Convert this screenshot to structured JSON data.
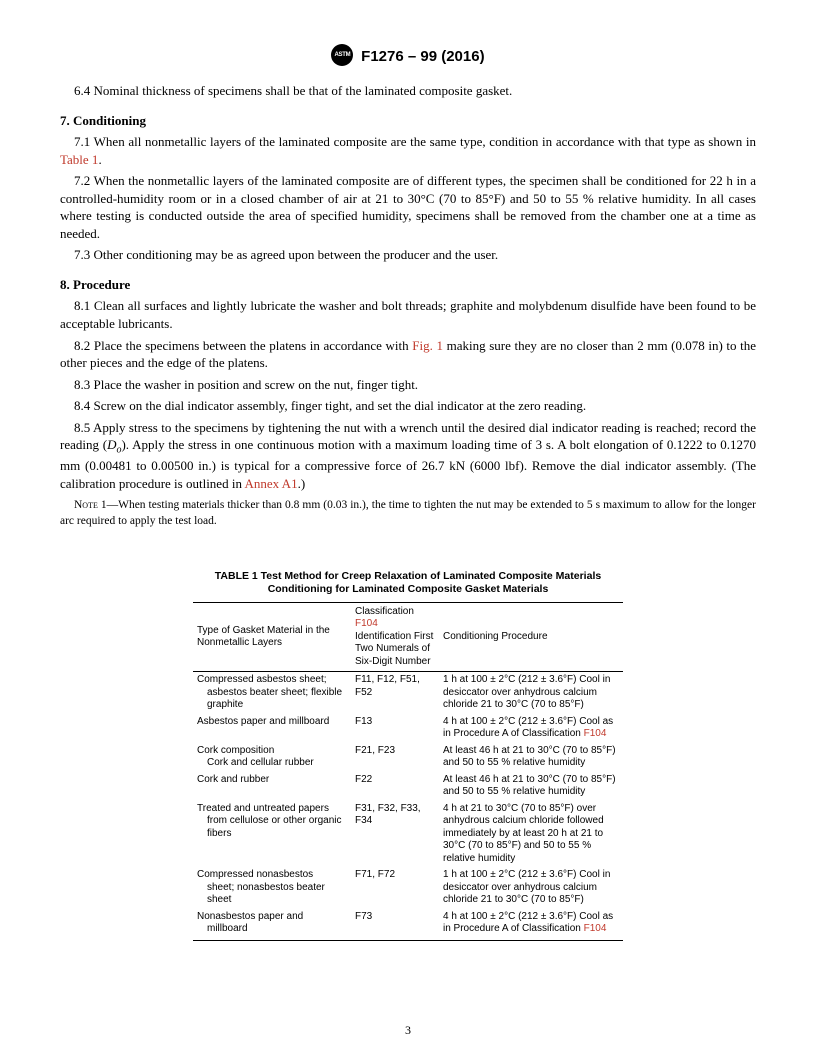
{
  "header": {
    "designation": "F1276 – 99 (2016)"
  },
  "paragraphs": {
    "p64": "6.4 Nominal thickness of specimens shall be that of the laminated composite gasket.",
    "s7": "7. Conditioning",
    "p71a": "7.1 When all nonmetallic layers of the laminated composite are the same type, condition in accordance with that type as shown in ",
    "p71link": "Table 1",
    "p71b": ".",
    "p72": "7.2 When the nonmetallic layers of the laminated composite are of different types, the specimen shall be conditioned for 22 h in a controlled-humidity room or in a closed chamber of air at 21 to 30°C (70 to 85°F) and 50 to 55 % relative humidity. In all cases where testing is conducted outside the area of specified humidity, specimens shall be removed from the chamber one at a time as needed.",
    "p73": "7.3 Other conditioning may be as agreed upon between the producer and the user.",
    "s8": "8. Procedure",
    "p81": "8.1 Clean all surfaces and lightly lubricate the washer and bolt threads; graphite and molybdenum disulfide have been found to be acceptable lubricants.",
    "p82a": "8.2 Place the specimens between the platens in accordance with ",
    "p82link": "Fig. 1",
    "p82b": " making sure they are no closer than 2 mm (0.078 in) to the other pieces and the edge of the platens.",
    "p83": "8.3 Place the washer in position and screw on the nut, finger tight.",
    "p84": "8.4 Screw on the dial indicator assembly, finger tight, and set the dial indicator at the zero reading.",
    "p85a": "8.5 Apply stress to the specimens by tightening the nut with a wrench until the desired dial indicator reading is reached; record the reading (",
    "p85var": "D",
    "p85sub": "o",
    "p85b": "). Apply the stress in one continuous motion with a maximum loading time of 3 s. A bolt elongation of 0.1222 to 0.1270 mm (0.00481 to 0.00500 in.) is typical for a compressive force of 26.7 kN (6000 lbf). Remove the dial indicator assembly. (The calibration procedure is outlined in ",
    "p85link": "Annex A1",
    "p85c": ".)",
    "note1label": "Note",
    "note1": " 1—When testing materials thicker than 0.8 mm (0.03 in.), the time to tighten the nut may be extended to 5 s maximum to allow for the longer arc required to apply the test load."
  },
  "table": {
    "title": "TABLE 1 Test Method for Creep Relaxation of Laminated Composite Materials Conditioning for Laminated Composite Gasket Materials",
    "head": {
      "c1": "Type of Gasket Material in the Nonmetallic Layers",
      "c2a": "Classification",
      "c2link": "F104",
      "c2b": "Identification First Two Numerals of Six-Digit Number",
      "c3": "Conditioning Procedure"
    },
    "rows": [
      {
        "c1": "Compressed asbestos sheet;",
        "c1b": "asbestos beater sheet; flexible graphite",
        "c2": "F11, F12, F51, F52",
        "c3": "1 h at 100 ± 2°C (212 ± 3.6°F) Cool in desiccator over anhydrous calcium chloride 21 to 30°C (70 to 85°F)"
      },
      {
        "c1": "Asbestos paper and millboard",
        "c1b": "",
        "c2": "F13",
        "c3a": "4 h at 100 ± 2°C (212 ± 3.6°F) Cool as in Procedure A of Classification ",
        "c3link": "F104"
      },
      {
        "c1": "Cork composition",
        "c1b": "Cork and cellular rubber",
        "c2": "F21, F23",
        "c3": "At least 46 h at 21 to 30°C (70 to 85°F) and 50 to 55 % relative humidity"
      },
      {
        "c1": "Cork and rubber",
        "c1b": "",
        "c2": "F22",
        "c3": "At least 46 h at 21 to 30°C (70 to 85°F) and 50 to 55 % relative humidity"
      },
      {
        "c1": "Treated and untreated papers",
        "c1b": "from cellulose or other organic fibers",
        "c2": "F31, F32, F33, F34",
        "c3": "4 h at 21 to 30°C (70 to 85°F) over anhydrous calcium chloride followed immediately by at least 20 h at 21 to 30°C (70 to 85°F) and 50 to 55 % relative humidity"
      },
      {
        "c1": "Compressed nonasbestos",
        "c1b": "sheet; nonasbestos beater sheet",
        "c2": "F71, F72",
        "c3": "1 h at 100 ± 2°C (212 ± 3.6°F) Cool in desiccator over anhydrous calcium chloride 21 to 30°C (70 to 85°F)"
      },
      {
        "c1": "Nonasbestos paper and",
        "c1b": "millboard",
        "c2": "F73",
        "c3a": "4 h at 100 ± 2°C (212 ± 3.6°F) Cool as in Procedure A of Classification ",
        "c3link": "F104"
      }
    ]
  },
  "pageNumber": "3"
}
